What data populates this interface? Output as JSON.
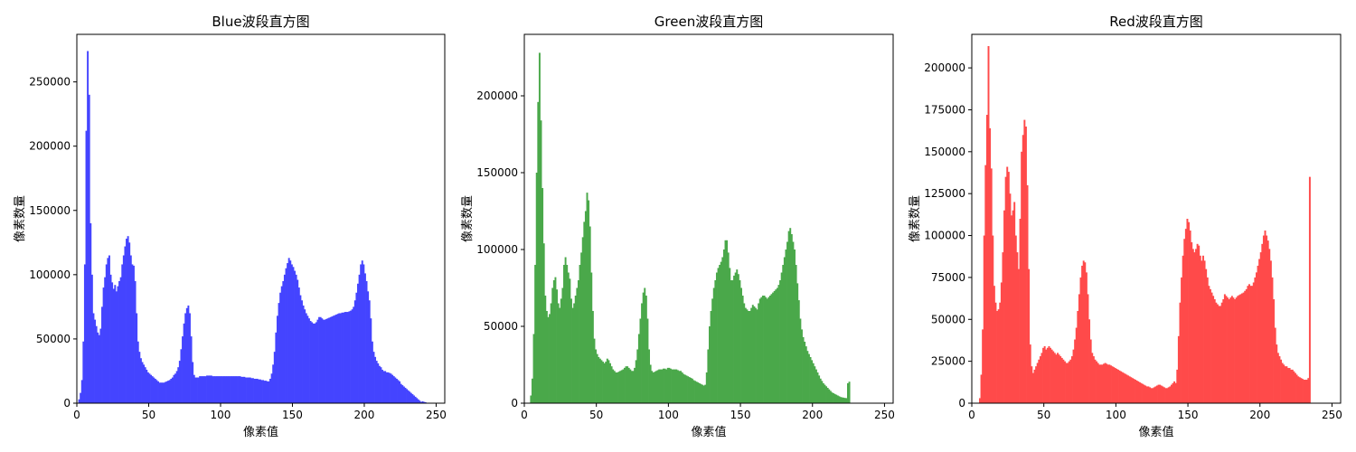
{
  "chart_data": [
    {
      "type": "bar",
      "title": "Blue波段直方图",
      "xlabel": "像素值",
      "ylabel": "像素数量",
      "color": "#4444ff",
      "xlim": [
        0,
        256
      ],
      "ylim": [
        0,
        287000
      ],
      "xticks": [
        0,
        50,
        100,
        150,
        200,
        250
      ],
      "yticks": [
        0,
        50000,
        100000,
        150000,
        200000,
        250000
      ],
      "grid": false,
      "values": [
        0,
        3000,
        8000,
        18000,
        48000,
        108000,
        212000,
        274000,
        240000,
        140000,
        100000,
        70000,
        65000,
        60000,
        55000,
        53000,
        58000,
        75000,
        90000,
        98000,
        108000,
        113000,
        115000,
        100000,
        94000,
        89000,
        92000,
        87000,
        91000,
        95000,
        98000,
        108000,
        115000,
        122000,
        128000,
        130000,
        125000,
        115000,
        108000,
        107000,
        95000,
        70000,
        48000,
        40000,
        35000,
        32000,
        30000,
        28000,
        26000,
        24000,
        23000,
        22000,
        21000,
        20000,
        19000,
        18000,
        17000,
        16000,
        16000,
        16000,
        16000,
        16500,
        17000,
        17500,
        18000,
        19000,
        20000,
        22000,
        23000,
        25000,
        28000,
        33000,
        42000,
        52000,
        62000,
        70000,
        74000,
        76000,
        70000,
        52000,
        32000,
        22000,
        20000,
        20000,
        20000,
        21000,
        21000,
        21000,
        21000,
        21000,
        21500,
        21500,
        21500,
        21500,
        21000,
        21000,
        21000,
        21000,
        21000,
        21000,
        21000,
        21000,
        21000,
        21000,
        21000,
        21000,
        21000,
        21000,
        21000,
        21000,
        21000,
        21000,
        21000,
        21000,
        20500,
        20500,
        20500,
        20000,
        20000,
        20000,
        20000,
        19500,
        19500,
        19000,
        19000,
        19000,
        18500,
        18500,
        18000,
        18000,
        17500,
        17500,
        17000,
        17000,
        19000,
        23000,
        30000,
        40000,
        55000,
        68000,
        78000,
        86000,
        91000,
        95000,
        100000,
        105000,
        109000,
        113000,
        111000,
        108000,
        106000,
        103000,
        100000,
        96000,
        90000,
        84000,
        80000,
        76000,
        73000,
        70000,
        68000,
        66000,
        64000,
        63000,
        62000,
        62000,
        63000,
        65000,
        67000,
        67000,
        66000,
        65000,
        65000,
        65500,
        66000,
        66500,
        67000,
        67500,
        68000,
        68500,
        69000,
        69500,
        70000,
        70000,
        70500,
        70500,
        71000,
        71000,
        71000,
        71500,
        72000,
        73000,
        75000,
        80000,
        86000,
        93000,
        100000,
        108000,
        111000,
        108000,
        101000,
        95000,
        87000,
        80000,
        66000,
        48000,
        40000,
        36000,
        33000,
        31000,
        29000,
        28000,
        26000,
        25000,
        25000,
        24000,
        24000,
        23500,
        23000,
        22000,
        21000,
        20000,
        19000,
        18000,
        17000,
        15000,
        14000,
        13000,
        12000,
        11000,
        10000,
        9000,
        8000,
        7000,
        6000,
        5000,
        4000,
        3000,
        2000,
        1000,
        1500,
        1000,
        800,
        0
      ]
    },
    {
      "type": "bar",
      "title": "Green波段直方图",
      "xlabel": "像素值",
      "ylabel": "像素数量",
      "color": "#4aa84a",
      "xlim": [
        0,
        256
      ],
      "ylim": [
        0,
        240000
      ],
      "xticks": [
        0,
        50,
        100,
        150,
        200,
        250
      ],
      "yticks": [
        0,
        50000,
        100000,
        150000,
        200000
      ],
      "grid": false,
      "values": [
        0,
        0,
        0,
        0,
        5000,
        16000,
        45000,
        90000,
        150000,
        196000,
        228000,
        184000,
        140000,
        104000,
        70000,
        60000,
        56000,
        58000,
        65000,
        75000,
        80000,
        82000,
        74000,
        65000,
        62000,
        68000,
        75000,
        90000,
        95000,
        90000,
        85000,
        81000,
        68000,
        62000,
        65000,
        70000,
        75000,
        80000,
        90000,
        98000,
        108000,
        118000,
        125000,
        137000,
        132000,
        115000,
        85000,
        60000,
        42000,
        35000,
        32000,
        30000,
        29000,
        28000,
        27000,
        26000,
        27000,
        29000,
        28000,
        26000,
        24000,
        22000,
        21000,
        20000,
        20000,
        20500,
        21000,
        21500,
        22000,
        23000,
        24000,
        24000,
        23000,
        22000,
        21000,
        21000,
        23000,
        28000,
        35000,
        45000,
        55000,
        65000,
        72000,
        75000,
        70000,
        55000,
        35000,
        25000,
        21000,
        20000,
        20500,
        21000,
        21500,
        22000,
        22000,
        22000,
        22500,
        22500,
        22000,
        23000,
        23000,
        22500,
        22000,
        22000,
        22000,
        22000,
        21500,
        21000,
        21000,
        20000,
        19000,
        18500,
        18000,
        17500,
        17000,
        16500,
        16000,
        15000,
        14500,
        14000,
        13500,
        13000,
        12500,
        12000,
        11500,
        12000,
        20000,
        35000,
        50000,
        60000,
        68000,
        75000,
        80000,
        85000,
        88000,
        90000,
        92000,
        95000,
        100000,
        106000,
        106000,
        98000,
        88000,
        80000,
        80000,
        83000,
        85000,
        87000,
        84000,
        80000,
        75000,
        70000,
        65000,
        62000,
        61000,
        60000,
        60000,
        62000,
        64000,
        63000,
        62000,
        61000,
        65000,
        68000,
        69000,
        70000,
        70000,
        69000,
        68000,
        69000,
        70000,
        71000,
        72000,
        73000,
        74000,
        75000,
        77000,
        80000,
        85000,
        90000,
        95000,
        100000,
        105000,
        112000,
        114000,
        110000,
        105000,
        100000,
        90000,
        78000,
        67000,
        55000,
        48000,
        43000,
        40000,
        37000,
        34000,
        32000,
        30000,
        28000,
        26000,
        24000,
        22000,
        20000,
        18000,
        16000,
        14500,
        13000,
        12000,
        11000,
        10000,
        9000,
        8000,
        7000,
        6500,
        6000,
        5500,
        5000,
        4500,
        4000,
        3800,
        3600,
        3400,
        3300,
        13000,
        14000
      ]
    },
    {
      "type": "bar",
      "title": "Red波段直方图",
      "xlabel": "像素值",
      "ylabel": "像素数量",
      "color": "#ff4a4a",
      "xlim": [
        0,
        256
      ],
      "ylim": [
        0,
        220000
      ],
      "xticks": [
        0,
        50,
        100,
        150,
        200,
        250
      ],
      "yticks": [
        0,
        25000,
        50000,
        75000,
        100000,
        125000,
        150000,
        175000,
        200000
      ],
      "grid": false,
      "values": [
        0,
        0,
        0,
        0,
        0,
        3000,
        17000,
        44000,
        100000,
        142000,
        172000,
        213000,
        164000,
        140000,
        100000,
        70000,
        60000,
        55000,
        56000,
        60000,
        72000,
        90000,
        115000,
        135000,
        141000,
        138000,
        125000,
        112000,
        115000,
        120000,
        100000,
        90000,
        80000,
        110000,
        150000,
        160000,
        169000,
        165000,
        130000,
        80000,
        35000,
        22000,
        18000,
        20000,
        22000,
        24000,
        26000,
        28000,
        30000,
        33000,
        34000,
        32000,
        33000,
        34000,
        33000,
        32000,
        31000,
        30000,
        29000,
        30000,
        29000,
        28000,
        27000,
        26000,
        25000,
        24000,
        24000,
        25000,
        26000,
        28000,
        32000,
        38000,
        45000,
        55000,
        65000,
        75000,
        82000,
        85000,
        84000,
        78000,
        65000,
        50000,
        38000,
        30000,
        28000,
        26000,
        25000,
        24000,
        23000,
        23000,
        23000,
        23500,
        24000,
        23500,
        23000,
        23000,
        22500,
        22000,
        21500,
        21000,
        20500,
        20000,
        19500,
        19000,
        18500,
        18000,
        17500,
        17000,
        16500,
        16000,
        15500,
        15000,
        14500,
        14000,
        13500,
        13000,
        12500,
        12000,
        11500,
        11000,
        10500,
        10000,
        10000,
        9500,
        9000,
        9000,
        9500,
        10000,
        10500,
        11000,
        11000,
        10500,
        10000,
        9500,
        9000,
        9000,
        9500,
        10000,
        11000,
        12000,
        13000,
        12000,
        20000,
        40000,
        60000,
        75000,
        88000,
        98000,
        104000,
        110000,
        108000,
        103000,
        96000,
        92000,
        90000,
        92000,
        95000,
        94000,
        88000,
        85000,
        88000,
        85000,
        80000,
        75000,
        70000,
        68000,
        66000,
        64000,
        62000,
        60000,
        59000,
        58000,
        58000,
        60000,
        62000,
        65000,
        64000,
        63000,
        62000,
        63000,
        64000,
        63000,
        62000,
        63000,
        64000,
        64500,
        65000,
        65500,
        66000,
        67000,
        68000,
        70000,
        71000,
        70000,
        70000,
        72000,
        75000,
        78000,
        82000,
        86000,
        90000,
        95000,
        100000,
        103000,
        100000,
        97000,
        92000,
        85000,
        75000,
        62000,
        45000,
        35000,
        30000,
        28000,
        26000,
        24000,
        23000,
        22000,
        22000,
        21000,
        21000,
        20000,
        20000,
        19000,
        18000,
        17000,
        16000,
        15500,
        15000,
        14500,
        14000,
        14000,
        14000,
        15000,
        135000
      ]
    }
  ]
}
